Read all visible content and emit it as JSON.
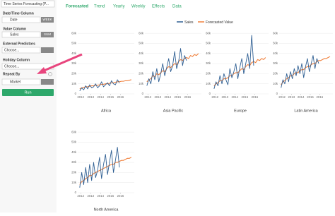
{
  "sidebar": {
    "analysis_select": "Time Series Forecasting (P...",
    "date_label": "Date/Time Column",
    "date_value": "Date",
    "date_unit": "WEEK",
    "value_label": "Value Column",
    "value_value": "Sales",
    "value_agg": "SUM",
    "predictors_label": "External Predictors",
    "predictors_value": "Choose...",
    "holiday_label": "Holiday Column",
    "holiday_value": "Choose...",
    "repeat_label": "Repeat By",
    "repeat_value": "Market",
    "run": "Run"
  },
  "tabs": [
    "Forecasted",
    "Trend",
    "Yearly",
    "Weekly",
    "Effects",
    "Data"
  ],
  "charts": [
    {
      "type": "line",
      "title": "Africa",
      "x": [
        2011.9,
        2012.1,
        2012.3,
        2012.5,
        2012.7,
        2012.9,
        2013.1,
        2013.3,
        2013.5,
        2013.7,
        2013.9,
        2014.1,
        2014.3,
        2014.5,
        2014.7,
        2014.9,
        2015.1,
        2015.3,
        2015.5,
        2015.7,
        2015.9,
        2016.1,
        2016.3,
        2016.5,
        2016.7,
        2016.9,
        2017.1
      ],
      "xlim": [
        2011.7,
        2017.4
      ],
      "xticks": [
        2012,
        2013,
        2014,
        2015,
        2016
      ],
      "ylim": [
        0,
        65000
      ],
      "yticks": [
        0,
        {
          "value": 10000,
          "label": "10k"
        },
        {
          "value": 20000,
          "label": "20k"
        },
        {
          "value": 30000,
          "label": "30k"
        },
        {
          "value": 40000,
          "label": "40k"
        },
        {
          "value": 50000,
          "label": "50k"
        },
        {
          "value": 60000,
          "label": "60k"
        }
      ],
      "grid": true,
      "series": [
        {
          "name": "Sales",
          "color": "#2f5f93",
          "values": [
            3000,
            6000,
            4000,
            8000,
            5000,
            9000,
            6000,
            7000,
            10000,
            6000,
            8000,
            12000,
            7000,
            9000,
            11000,
            8000,
            13000,
            10000,
            9000,
            14000,
            11000,
            null,
            null,
            null,
            null,
            null,
            null
          ]
        },
        {
          "name": "Forecasted Value",
          "color": "#f0803c",
          "values": [
            5000,
            6000,
            6500,
            7000,
            7000,
            7500,
            8000,
            8000,
            8500,
            8500,
            9000,
            9500,
            9500,
            10000,
            10000,
            10500,
            11000,
            11000,
            11500,
            12000,
            12000,
            12500,
            12500,
            13000,
            13000,
            13500,
            14000
          ]
        }
      ]
    },
    {
      "type": "line",
      "title": "Asia Pacific",
      "x": [
        2011.9,
        2012.1,
        2012.3,
        2012.5,
        2012.7,
        2012.9,
        2013.1,
        2013.3,
        2013.5,
        2013.7,
        2013.9,
        2014.1,
        2014.3,
        2014.5,
        2014.7,
        2014.9,
        2015.1,
        2015.3,
        2015.5,
        2015.7,
        2015.9,
        2016.1,
        2016.3,
        2016.5,
        2016.7,
        2016.9,
        2017.1
      ],
      "xlim": [
        2011.7,
        2017.4
      ],
      "xticks": [
        2012,
        2013,
        2014,
        2015,
        2016
      ],
      "ylim": [
        0,
        65000
      ],
      "yticks": [
        0,
        {
          "value": 10000,
          "label": "10k"
        },
        {
          "value": 20000,
          "label": "20k"
        },
        {
          "value": 30000,
          "label": "30k"
        },
        {
          "value": 40000,
          "label": "40k"
        },
        {
          "value": 50000,
          "label": "50k"
        },
        {
          "value": 60000,
          "label": "60k"
        }
      ],
      "grid": true,
      "series": [
        {
          "name": "Sales",
          "color": "#2f5f93",
          "values": [
            8000,
            15000,
            10000,
            22000,
            14000,
            25000,
            12000,
            20000,
            30000,
            18000,
            26000,
            35000,
            22000,
            28000,
            42000,
            25000,
            32000,
            45000,
            28000,
            38000,
            33000,
            null,
            null,
            null,
            null,
            null,
            null
          ]
        },
        {
          "name": "Forecasted Value",
          "color": "#f0803c",
          "values": [
            12000,
            14000,
            15000,
            18000,
            17000,
            20000,
            19000,
            21000,
            23000,
            22000,
            25000,
            27000,
            26000,
            28000,
            30000,
            29000,
            32000,
            34000,
            33000,
            35000,
            36000,
            35000,
            38000,
            37000,
            39000,
            38000,
            40000
          ]
        }
      ]
    },
    {
      "type": "line",
      "title": "Europe",
      "x": [
        2011.9,
        2012.1,
        2012.3,
        2012.5,
        2012.7,
        2012.9,
        2013.1,
        2013.3,
        2013.5,
        2013.7,
        2013.9,
        2014.1,
        2014.3,
        2014.5,
        2014.7,
        2014.9,
        2015.1,
        2015.3,
        2015.5,
        2015.7,
        2015.9,
        2016.1,
        2016.3,
        2016.5,
        2016.7,
        2016.9,
        2017.1
      ],
      "xlim": [
        2011.7,
        2017.4
      ],
      "xticks": [
        2012,
        2013,
        2014,
        2015,
        2016
      ],
      "ylim": [
        0,
        65000
      ],
      "yticks": [
        0,
        {
          "value": 10000,
          "label": "10k"
        },
        {
          "value": 20000,
          "label": "20k"
        },
        {
          "value": 30000,
          "label": "30k"
        },
        {
          "value": 40000,
          "label": "40k"
        },
        {
          "value": 50000,
          "label": "50k"
        },
        {
          "value": 60000,
          "label": "60k"
        }
      ],
      "grid": true,
      "series": [
        {
          "name": "Sales",
          "color": "#2f5f93",
          "values": [
            5000,
            12000,
            8000,
            18000,
            10000,
            20000,
            14000,
            9000,
            25000,
            16000,
            22000,
            30000,
            15000,
            26000,
            35000,
            20000,
            30000,
            40000,
            25000,
            58000,
            28000,
            null,
            null,
            null,
            null,
            null,
            null
          ]
        },
        {
          "name": "Forecasted Value",
          "color": "#f0803c",
          "values": [
            8000,
            10000,
            11000,
            13000,
            13000,
            15000,
            15000,
            16000,
            18000,
            18000,
            20000,
            21000,
            21000,
            23000,
            25000,
            24000,
            27000,
            29000,
            28000,
            31000,
            32000,
            31000,
            34000,
            33000,
            35000,
            34000,
            36000
          ]
        }
      ]
    },
    {
      "type": "line",
      "title": "Latin America",
      "x": [
        2011.9,
        2012.1,
        2012.3,
        2012.5,
        2012.7,
        2012.9,
        2013.1,
        2013.3,
        2013.5,
        2013.7,
        2013.9,
        2014.1,
        2014.3,
        2014.5,
        2014.7,
        2014.9,
        2015.1,
        2015.3,
        2015.5,
        2015.7,
        2015.9,
        2016.1,
        2016.3,
        2016.5,
        2016.7,
        2016.9,
        2017.1
      ],
      "xlim": [
        2011.7,
        2017.4
      ],
      "xticks": [
        2012,
        2013,
        2014,
        2015,
        2016
      ],
      "ylim": [
        0,
        65000
      ],
      "yticks": [
        0,
        {
          "value": 10000,
          "label": "10k"
        },
        {
          "value": 20000,
          "label": "20k"
        },
        {
          "value": 30000,
          "label": "30k"
        },
        {
          "value": 40000,
          "label": "40k"
        },
        {
          "value": 50000,
          "label": "50k"
        },
        {
          "value": 60000,
          "label": "60k"
        }
      ],
      "grid": true,
      "series": [
        {
          "name": "Sales",
          "color": "#2f5f93",
          "values": [
            6000,
            14000,
            10000,
            20000,
            12000,
            22000,
            15000,
            25000,
            18000,
            28000,
            20000,
            30000,
            16000,
            27000,
            35000,
            22000,
            30000,
            38000,
            25000,
            35000,
            30000,
            null,
            null,
            null,
            null,
            null,
            null
          ]
        },
        {
          "name": "Forecasted Value",
          "color": "#f0803c",
          "values": [
            9000,
            12000,
            13000,
            15000,
            16000,
            18000,
            18000,
            20000,
            21000,
            21000,
            23000,
            24000,
            24000,
            26000,
            27000,
            27000,
            29000,
            30000,
            30000,
            32000,
            33000,
            33000,
            34000,
            35000,
            35000,
            36000,
            37000
          ]
        }
      ]
    },
    {
      "type": "line",
      "title": "North America",
      "x": [
        2011.9,
        2012.1,
        2012.3,
        2012.5,
        2012.7,
        2012.9,
        2013.1,
        2013.3,
        2013.5,
        2013.7,
        2013.9,
        2014.1,
        2014.3,
        2014.5,
        2014.7,
        2014.9,
        2015.1,
        2015.3,
        2015.5,
        2015.7,
        2015.9,
        2016.1,
        2016.3,
        2016.5,
        2016.7,
        2016.9,
        2017.1
      ],
      "xlim": [
        2011.7,
        2017.4
      ],
      "xticks": [
        2012,
        2013,
        2014,
        2015,
        2016
      ],
      "ylim": [
        0,
        65000
      ],
      "yticks": [
        0,
        {
          "value": 10000,
          "label": "10k"
        },
        {
          "value": 20000,
          "label": "20k"
        },
        {
          "value": 30000,
          "label": "30k"
        },
        {
          "value": 40000,
          "label": "40k"
        },
        {
          "value": 50000,
          "label": "50k"
        },
        {
          "value": 60000,
          "label": "60k"
        }
      ],
      "grid": true,
      "series": [
        {
          "name": "Sales",
          "color": "#2f5f93",
          "values": [
            5000,
            20000,
            8000,
            25000,
            10000,
            28000,
            12000,
            30000,
            15000,
            22000,
            35000,
            14000,
            28000,
            38000,
            18000,
            30000,
            42000,
            20000,
            32000,
            45000,
            25000,
            null,
            null,
            null,
            null,
            null,
            null
          ]
        },
        {
          "name": "Forecasted Value",
          "color": "#f0803c",
          "values": [
            8000,
            11000,
            12000,
            14000,
            15000,
            17000,
            17000,
            19000,
            20000,
            21000,
            22000,
            23000,
            24000,
            25000,
            26000,
            27000,
            28000,
            28000,
            30000,
            30000,
            31000,
            32000,
            32000,
            33000,
            34000,
            34000,
            35000
          ]
        }
      ]
    }
  ]
}
